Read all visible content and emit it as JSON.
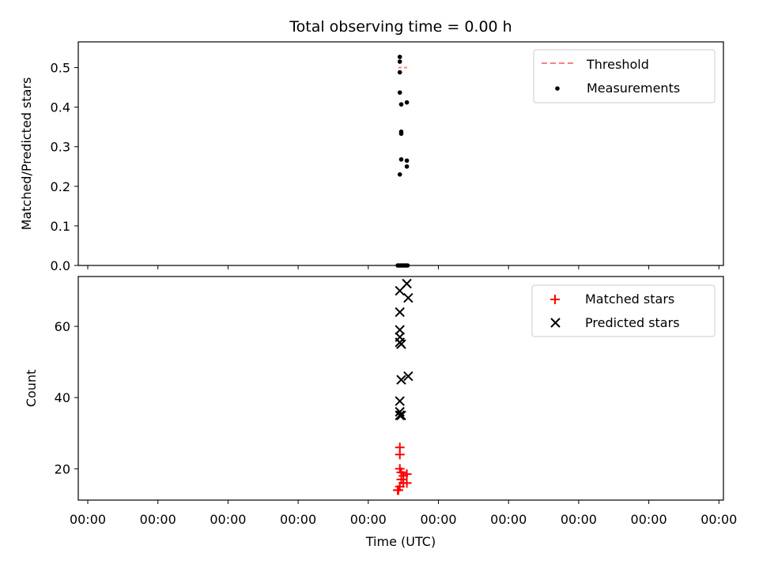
{
  "chart_data": [
    {
      "type": "scatter",
      "title": "Total observing time = 0.00 h",
      "ylabel": "Matched/Predicted stars",
      "xlabel": "",
      "ylim": [
        0,
        0.565
      ],
      "yticks": [
        "0.0",
        "0.1",
        "0.2",
        "0.3",
        "0.4",
        "0.5"
      ],
      "legend_placement": "top-right",
      "series": [
        {
          "name": "Threshold",
          "style": "dashed-line",
          "color": "#ff7f7f",
          "y": 0.5
        },
        {
          "name": "Measurements",
          "style": "dot",
          "color": "#000000",
          "points": [
            {
              "x": 4.45,
              "y": 0.527
            },
            {
              "x": 4.45,
              "y": 0.515
            },
            {
              "x": 4.45,
              "y": 0.488
            },
            {
              "x": 4.45,
              "y": 0.437
            },
            {
              "x": 4.47,
              "y": 0.407
            },
            {
              "x": 4.55,
              "y": 0.412
            },
            {
              "x": 4.47,
              "y": 0.338
            },
            {
              "x": 4.47,
              "y": 0.333
            },
            {
              "x": 4.47,
              "y": 0.268
            },
            {
              "x": 4.55,
              "y": 0.265
            },
            {
              "x": 4.55,
              "y": 0.25
            },
            {
              "x": 4.45,
              "y": 0.23
            },
            {
              "x": 4.42,
              "y": 0.0
            },
            {
              "x": 4.44,
              "y": 0.0
            },
            {
              "x": 4.46,
              "y": 0.0
            },
            {
              "x": 4.48,
              "y": 0.0
            },
            {
              "x": 4.5,
              "y": 0.0
            },
            {
              "x": 4.52,
              "y": 0.0
            },
            {
              "x": 4.54,
              "y": 0.0
            },
            {
              "x": 4.56,
              "y": 0.0
            }
          ]
        }
      ]
    },
    {
      "type": "scatter",
      "title": "",
      "ylabel": "Count",
      "xlabel": "Time (UTC)",
      "ylim": [
        11.2,
        74
      ],
      "yticks": [
        "20",
        "40",
        "60"
      ],
      "xticks": [
        "00:00",
        "00:00",
        "00:00",
        "00:00",
        "00:00",
        "00:00",
        "00:00",
        "00:00",
        "00:00",
        "00:00"
      ],
      "legend_placement": "top-right",
      "series": [
        {
          "name": "Matched stars",
          "style": "plus",
          "color": "#ff0000",
          "points": [
            {
              "x": 4.45,
              "y": 26
            },
            {
              "x": 4.45,
              "y": 24
            },
            {
              "x": 4.45,
              "y": 20
            },
            {
              "x": 4.47,
              "y": 19
            },
            {
              "x": 4.5,
              "y": 18
            },
            {
              "x": 4.55,
              "y": 18.5
            },
            {
              "x": 4.47,
              "y": 17
            },
            {
              "x": 4.55,
              "y": 16
            },
            {
              "x": 4.5,
              "y": 16
            },
            {
              "x": 4.45,
              "y": 15
            },
            {
              "x": 4.42,
              "y": 14
            },
            {
              "x": 4.43,
              "y": 14
            }
          ]
        },
        {
          "name": "Predicted stars",
          "style": "x",
          "color": "#000000",
          "points": [
            {
              "x": 4.55,
              "y": 72
            },
            {
              "x": 4.45,
              "y": 70
            },
            {
              "x": 4.57,
              "y": 68
            },
            {
              "x": 4.45,
              "y": 64
            },
            {
              "x": 4.45,
              "y": 59
            },
            {
              "x": 4.45,
              "y": 57
            },
            {
              "x": 4.45,
              "y": 55.5
            },
            {
              "x": 4.47,
              "y": 55
            },
            {
              "x": 4.57,
              "y": 46
            },
            {
              "x": 4.47,
              "y": 45
            },
            {
              "x": 4.45,
              "y": 39
            },
            {
              "x": 4.45,
              "y": 36
            },
            {
              "x": 4.47,
              "y": 35
            },
            {
              "x": 4.45,
              "y": 35
            }
          ]
        }
      ]
    }
  ]
}
